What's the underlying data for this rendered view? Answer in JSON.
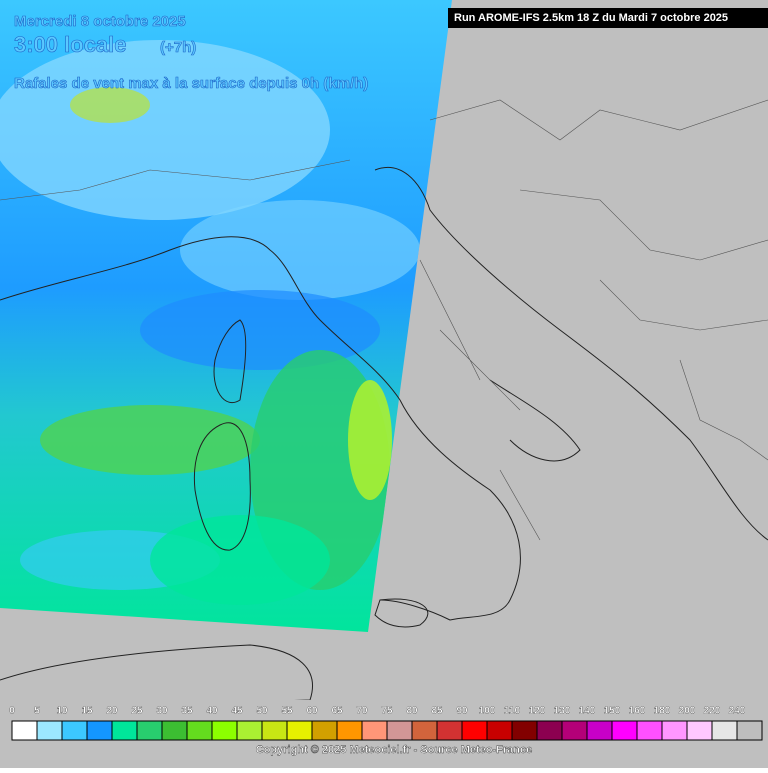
{
  "header": {
    "date": "Mercredi 8 octobre 2025",
    "time": "3:00 locale",
    "offset": "(+7h)",
    "title": "Rafales de vent max à la surface depuis 0h (km/h)"
  },
  "run": "Run AROME-IFS 2.5km 18 Z du Mardi 7 octobre 2025",
  "legend": {
    "values": [
      0,
      5,
      10,
      15,
      20,
      25,
      30,
      35,
      40,
      45,
      50,
      55,
      60,
      65,
      70,
      75,
      80,
      85,
      90,
      100,
      110,
      120,
      130,
      140,
      150,
      160,
      180,
      200,
      220,
      240
    ],
    "colors": [
      "#ffffff",
      "#9ce8ff",
      "#3cc8ff",
      "#1496ff",
      "#00e69a",
      "#28cd6e",
      "#3cbe32",
      "#64dc1e",
      "#8cff00",
      "#aaf032",
      "#c8e614",
      "#e6f000",
      "#d2a000",
      "#ff9600",
      "#ff9678",
      "#d29696",
      "#d2643c",
      "#d23232",
      "#ff0000",
      "#c80000",
      "#820000",
      "#8c0050",
      "#b40078",
      "#c800c8",
      "#ff00ff",
      "#ff50ff",
      "#ff96ff",
      "#ffc8ff",
      "#e6e6e6",
      "#bebebe"
    ]
  },
  "copyright": "Copyright © 2025 Meteociel.fr - Source Meteo-France"
}
